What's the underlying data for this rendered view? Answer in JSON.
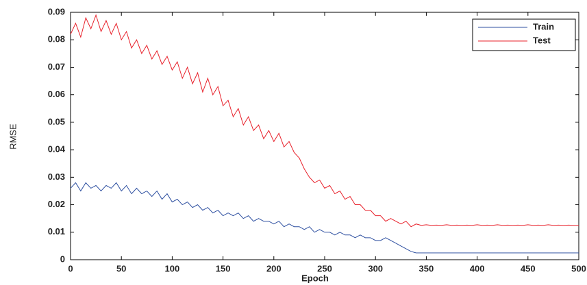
{
  "chart_data": {
    "type": "line",
    "x_label": "Epoch",
    "y_label": "RMSE",
    "x": [
      0,
      5,
      10,
      15,
      20,
      25,
      30,
      35,
      40,
      45,
      50,
      55,
      60,
      65,
      70,
      75,
      80,
      85,
      90,
      95,
      100,
      105,
      110,
      115,
      120,
      125,
      130,
      135,
      140,
      145,
      150,
      155,
      160,
      165,
      170,
      175,
      180,
      185,
      190,
      195,
      200,
      205,
      210,
      215,
      220,
      225,
      230,
      235,
      240,
      245,
      250,
      255,
      260,
      265,
      270,
      275,
      280,
      285,
      290,
      295,
      300,
      305,
      310,
      315,
      320,
      325,
      330,
      335,
      340,
      345,
      350,
      355,
      360,
      365,
      370,
      375,
      380,
      385,
      390,
      395,
      400,
      405,
      410,
      415,
      420,
      425,
      430,
      435,
      440,
      445,
      450,
      455,
      460,
      465,
      470,
      475,
      480,
      485,
      490,
      495,
      500
    ],
    "series": [
      {
        "name": "Train",
        "color": "#2d4fa0",
        "values": [
          0.026,
          0.028,
          0.025,
          0.028,
          0.026,
          0.027,
          0.025,
          0.027,
          0.026,
          0.028,
          0.025,
          0.027,
          0.024,
          0.026,
          0.024,
          0.025,
          0.023,
          0.025,
          0.022,
          0.024,
          0.021,
          0.022,
          0.02,
          0.021,
          0.019,
          0.02,
          0.018,
          0.019,
          0.017,
          0.018,
          0.016,
          0.017,
          0.016,
          0.017,
          0.015,
          0.016,
          0.014,
          0.015,
          0.014,
          0.014,
          0.013,
          0.014,
          0.012,
          0.013,
          0.012,
          0.012,
          0.011,
          0.012,
          0.01,
          0.011,
          0.01,
          0.01,
          0.009,
          0.01,
          0.009,
          0.009,
          0.008,
          0.009,
          0.008,
          0.008,
          0.007,
          0.007,
          0.008,
          0.007,
          0.006,
          0.005,
          0.004,
          0.003,
          0.0025,
          0.0025,
          0.0025,
          0.0025,
          0.0025,
          0.0025,
          0.0025,
          0.0025,
          0.0025,
          0.0025,
          0.0025,
          0.0025,
          0.0025,
          0.0025,
          0.0025,
          0.0025,
          0.0025,
          0.0025,
          0.0025,
          0.0025,
          0.0025,
          0.0025,
          0.0025,
          0.0025,
          0.0025,
          0.0025,
          0.0025,
          0.0025,
          0.0025,
          0.0025,
          0.0025,
          0.0025,
          0.0025
        ]
      },
      {
        "name": "Test",
        "color": "#e8202a",
        "values": [
          0.082,
          0.086,
          0.081,
          0.088,
          0.084,
          0.089,
          0.083,
          0.087,
          0.082,
          0.086,
          0.08,
          0.083,
          0.077,
          0.08,
          0.075,
          0.078,
          0.073,
          0.076,
          0.071,
          0.074,
          0.069,
          0.072,
          0.066,
          0.07,
          0.064,
          0.068,
          0.061,
          0.066,
          0.06,
          0.063,
          0.056,
          0.058,
          0.052,
          0.055,
          0.049,
          0.052,
          0.047,
          0.049,
          0.044,
          0.047,
          0.043,
          0.046,
          0.041,
          0.043,
          0.039,
          0.037,
          0.033,
          0.03,
          0.028,
          0.029,
          0.026,
          0.027,
          0.024,
          0.025,
          0.022,
          0.023,
          0.02,
          0.02,
          0.018,
          0.018,
          0.016,
          0.016,
          0.014,
          0.015,
          0.014,
          0.013,
          0.014,
          0.012,
          0.013,
          0.0125,
          0.0127,
          0.0125,
          0.0126,
          0.0125,
          0.0127,
          0.0125,
          0.0126,
          0.0125,
          0.0126,
          0.0125,
          0.0127,
          0.0125,
          0.0126,
          0.0125,
          0.0127,
          0.0125,
          0.0126,
          0.0125,
          0.0126,
          0.0125,
          0.0127,
          0.0125,
          0.0126,
          0.0125,
          0.0127,
          0.0125,
          0.0126,
          0.0125,
          0.0126,
          0.0125,
          0.0125
        ]
      }
    ],
    "xlim": [
      0,
      500
    ],
    "xticks": [
      0,
      50,
      100,
      150,
      200,
      250,
      300,
      350,
      400,
      450,
      500
    ],
    "ylim": [
      0,
      0.09
    ],
    "yticks": [
      0,
      0.01,
      0.02,
      0.03,
      0.04,
      0.05,
      0.06,
      0.07,
      0.08,
      0.09
    ],
    "grid": false,
    "legend": "upper right"
  }
}
